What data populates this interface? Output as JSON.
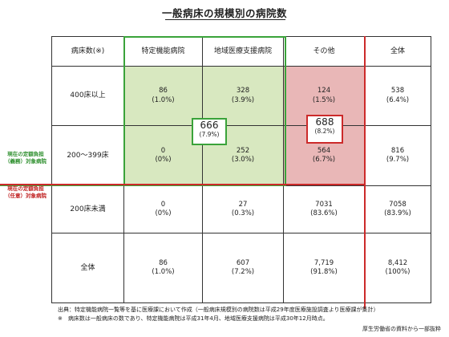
{
  "title": "一般病床の規模別の病院数",
  "table": {
    "headers": [
      "病床数(※)",
      "特定機能病院",
      "地域医療支援病院",
      "その他",
      "全体"
    ],
    "rows": [
      {
        "label": "400床以上",
        "cells": [
          {
            "count": "86",
            "pct": "(1.0%)"
          },
          {
            "count": "328",
            "pct": "(3.9%)"
          },
          {
            "count": "124",
            "pct": "(1.5%)"
          },
          {
            "count": "538",
            "pct": "(6.4%)"
          }
        ]
      },
      {
        "label": "200～399床",
        "cells": [
          {
            "count": "0",
            "pct": "(0%)"
          },
          {
            "count": "252",
            "pct": "(3.0%)"
          },
          {
            "count": "564",
            "pct": "(6.7%)"
          },
          {
            "count": "816",
            "pct": "(9.7%)"
          }
        ]
      },
      {
        "label": "200床未満",
        "cells": [
          {
            "count": "0",
            "pct": "(0%)"
          },
          {
            "count": "27",
            "pct": "(0.3%)"
          },
          {
            "count": "7031",
            "pct": "(83.6%)"
          },
          {
            "count": "7058",
            "pct": "(83.9%)"
          }
        ]
      },
      {
        "label": "全体",
        "cells": [
          {
            "count": "86",
            "pct": "(1.0%)"
          },
          {
            "count": "607",
            "pct": "(7.2%)"
          },
          {
            "count": "7,719",
            "pct": "(91.8%)"
          },
          {
            "count": "8,412",
            "pct": "(100%)"
          }
        ]
      }
    ]
  },
  "callouts": {
    "green": {
      "count": "666",
      "pct": "(7.9%)"
    },
    "red": {
      "count": "688",
      "pct": "(8.2%)"
    }
  },
  "side_labels": {
    "green_line1": "現在の定額負担",
    "green_line2": "（義務）対象病院",
    "red_line1": "現在の定額負担",
    "red_line2": "（任意）対象病院"
  },
  "footnotes": {
    "line1": "出典：特定機能病院一覧等を基に医療課において作成（一般病床規模別の病院数は平成29年度医療施設調査より医療課が集計）",
    "line2": "※　病床数は一般病床の数であり、特定機能病院は平成31年4月、地域医療支援病院は平成30年12月時点。"
  },
  "source": "厚生労働省の資料から一部抜粋",
  "colors": {
    "green": "#3aa33a",
    "green_fill": "#d8e8c0",
    "red": "#cc2a2a",
    "pink_fill": "#e9b7b7"
  }
}
